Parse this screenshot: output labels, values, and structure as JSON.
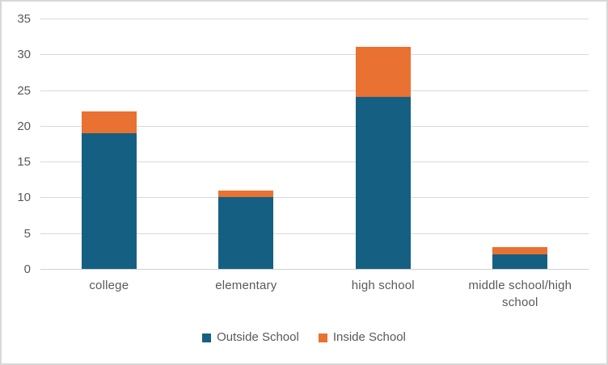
{
  "chart_data": {
    "type": "bar",
    "stacked": true,
    "title": "",
    "xlabel": "",
    "ylabel": "",
    "categories": [
      "college",
      "elementary",
      "high school",
      "middle school/high school"
    ],
    "series": [
      {
        "name": "Outside School",
        "color": "#156082",
        "values": [
          19,
          10,
          24,
          2
        ]
      },
      {
        "name": "Inside School",
        "color": "#E97132",
        "values": [
          3,
          1,
          7,
          1
        ]
      }
    ],
    "totals": [
      22,
      11,
      31,
      3
    ],
    "ylim": [
      0,
      35
    ],
    "yticks": [
      0,
      5,
      10,
      15,
      20,
      25,
      30,
      35
    ],
    "grid": true,
    "legend_position": "bottom"
  },
  "colors": {
    "background": "#FFFFFF",
    "frame_border": "#D8D8D8",
    "gridline": "#D9D9D9",
    "axis_line": "#D0D0D0",
    "label_text": "#595959"
  }
}
